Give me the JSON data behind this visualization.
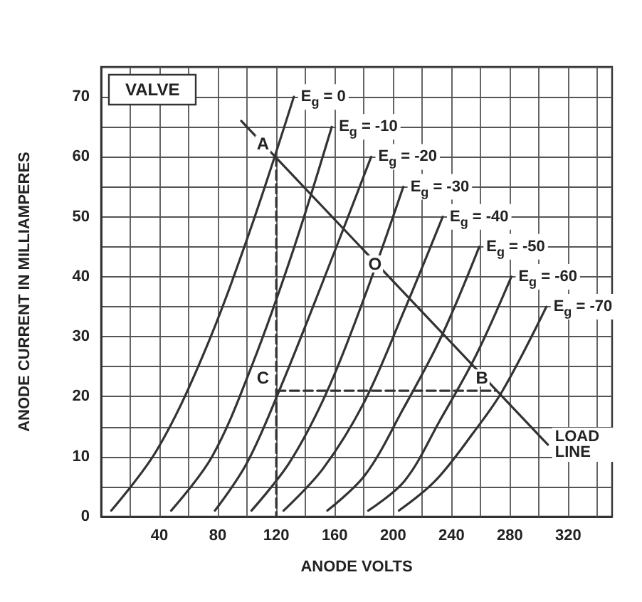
{
  "chart_data": {
    "type": "line",
    "title": "VALVE",
    "xlabel": "ANODE VOLTS",
    "ylabel": "ANODE CURRENT IN MILLIAMPERES",
    "xlim": [
      0,
      350
    ],
    "xticks": [
      {
        "value": 0,
        "label": null
      },
      {
        "value": 20,
        "label": null
      },
      40,
      {
        "value": 60,
        "label": null
      },
      80,
      {
        "value": 100,
        "label": null
      },
      120,
      {
        "value": 140,
        "label": null
      },
      160,
      {
        "value": 180,
        "label": null
      },
      200,
      {
        "value": 220,
        "label": null
      },
      240,
      {
        "value": 260,
        "label": null
      },
      280,
      {
        "value": 300,
        "label": null
      },
      320,
      {
        "value": 340,
        "label": null
      }
    ],
    "ylim": [
      0,
      75
    ],
    "yticks": [
      0,
      {
        "value": 5,
        "label": null
      },
      10,
      {
        "value": 15,
        "label": null
      },
      20,
      {
        "value": 25,
        "label": null
      },
      30,
      {
        "value": 35,
        "label": null
      },
      40,
      {
        "value": 45,
        "label": null
      },
      50,
      {
        "value": 55,
        "label": null
      },
      60,
      {
        "value": 65,
        "label": null
      },
      70,
      {
        "value": 75,
        "label": null
      }
    ],
    "grid": true,
    "legend": false,
    "marker": "none",
    "line_style": "solid",
    "series": [
      {
        "name": "E$_{g}$ = 0",
        "color": "#333333",
        "x": [
          7,
          38,
          70,
          101,
          132
        ],
        "values": [
          1,
          11,
          27,
          47,
          70
        ]
      },
      {
        "name": "E$_{g}$ = -10",
        "color": "#333333",
        "x": [
          48,
          76,
          103,
          131,
          158
        ],
        "values": [
          1,
          10,
          25,
          44,
          65
        ]
      },
      {
        "name": "E$_{g}$ = -20",
        "color": "#333333",
        "x": [
          78,
          100,
          122,
          150,
          185
        ],
        "values": [
          1,
          9,
          21,
          38,
          60
        ]
      },
      {
        "name": "E$_{g}$ = -30",
        "color": "#333333",
        "x": [
          103,
          129,
          155,
          181,
          207
        ],
        "values": [
          1,
          9,
          21,
          37,
          55
        ]
      },
      {
        "name": "E$_{g}$ = -40",
        "color": "#333333",
        "x": [
          125,
          152,
          180,
          207,
          234
        ],
        "values": [
          1,
          8,
          19,
          34,
          50
        ]
      },
      {
        "name": "E$_{g}$ = -50",
        "color": "#333333",
        "x": [
          155,
          181,
          207,
          233,
          259
        ],
        "values": [
          1,
          7,
          18,
          30,
          45
        ]
      },
      {
        "name": "E$_{g}$ = -60",
        "color": "#333333",
        "x": [
          183,
          208,
          232,
          257,
          281
        ],
        "values": [
          1,
          6,
          16,
          27,
          40
        ]
      },
      {
        "name": "E$_{g}$ = -70",
        "color": "#333333",
        "x": [
          204,
          229,
          255,
          275,
          305
        ],
        "values": [
          1,
          6,
          14,
          21,
          35
        ]
      },
      {
        "name": "LOAD LINE",
        "color": "#333333",
        "x": [
          96,
          306
        ],
        "values": [
          66,
          12
        ]
      },
      {
        "color": "#333333",
        "line_style": "dashed",
        "x": [
          120,
          120
        ],
        "values": [
          60,
          0
        ]
      },
      {
        "color": "#333333",
        "line_style": "dashed",
        "x": [
          120,
          270
        ],
        "values": [
          21,
          21
        ]
      }
    ],
    "annotations": [
      {
        "text": "A",
        "x": 120,
        "y": 60
      },
      {
        "text": "C",
        "x": 120,
        "y": 21
      },
      {
        "text": "B",
        "x": 270,
        "y": 21
      },
      {
        "text": "O",
        "x": 197,
        "y": 40
      }
    ]
  }
}
